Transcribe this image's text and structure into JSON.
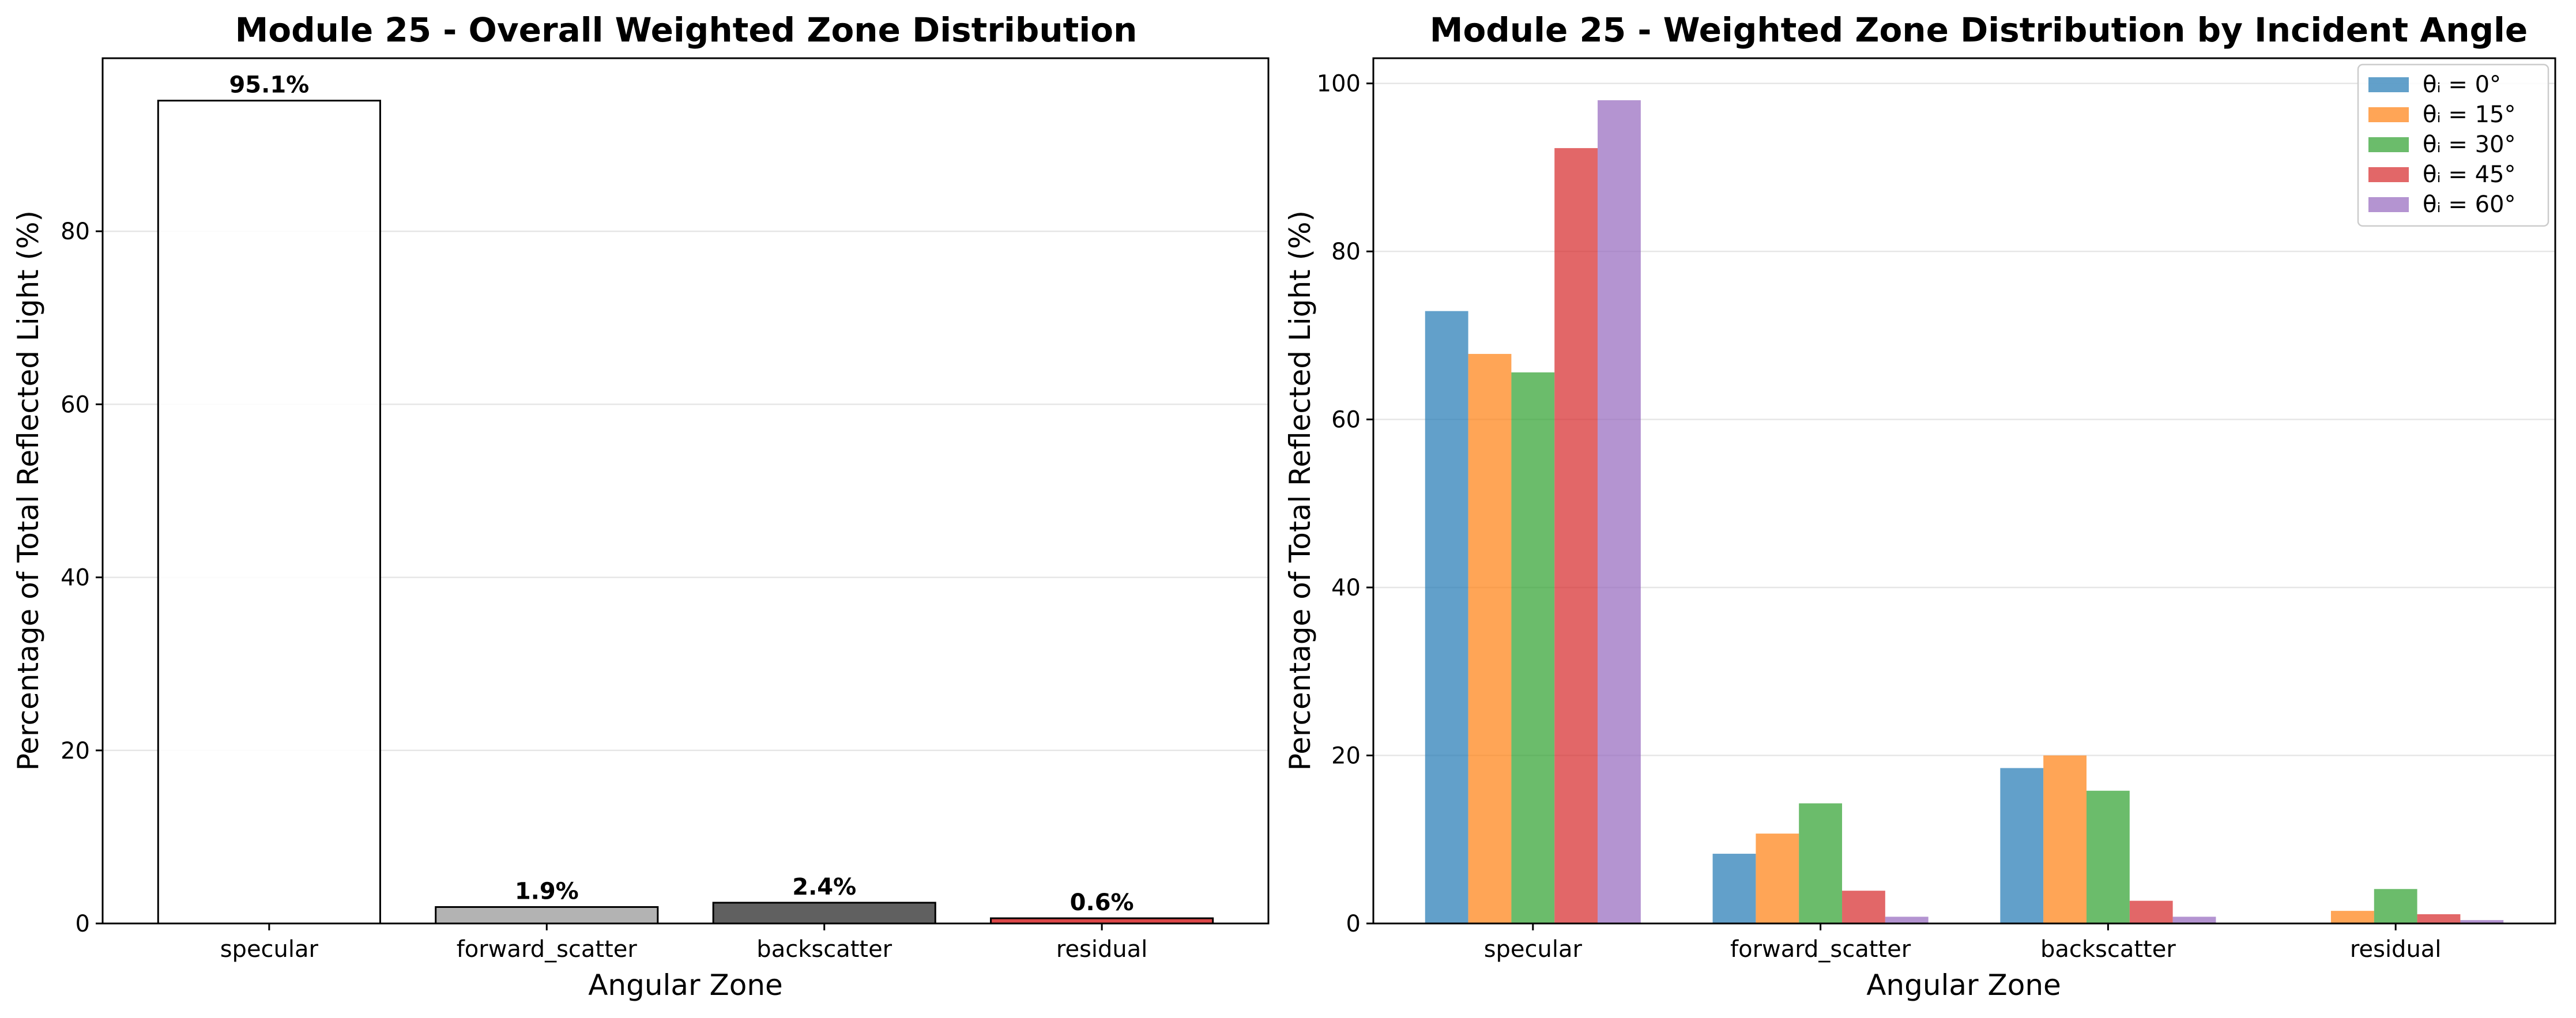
{
  "chart_data": [
    {
      "type": "bar",
      "title": "Module 25 - Overall Weighted Zone Distribution",
      "xlabel": "Angular Zone",
      "ylabel": "Percentage of Total Reflected Light (%)",
      "categories": [
        "specular",
        "forward_scatter",
        "backscatter",
        "residual"
      ],
      "values": [
        95.1,
        1.9,
        2.4,
        0.6
      ],
      "data_labels": [
        "95.1%",
        "1.9%",
        "2.4%",
        "0.6%"
      ],
      "bar_colors": [
        "#ffffff",
        "#a6a6a6",
        "#444444",
        "#d62728"
      ],
      "ylim": [
        0,
        100
      ],
      "yticks": [
        0,
        20,
        40,
        60,
        80
      ],
      "ytick_labels": [
        "0",
        "20",
        "40",
        "60",
        "80"
      ],
      "grid": "y",
      "legend": "none"
    },
    {
      "type": "bar",
      "title": "Module 25 - Weighted Zone Distribution by Incident Angle",
      "xlabel": "Angular Zone",
      "ylabel": "Percentage of Total Reflected Light (%)",
      "categories": [
        "specular",
        "forward_scatter",
        "backscatter",
        "residual"
      ],
      "series": [
        {
          "name": "θᵢ = 0°",
          "color": "#1f77b4",
          "values": [
            72.9,
            8.3,
            18.5,
            0.0
          ]
        },
        {
          "name": "θᵢ = 15°",
          "color": "#ff7f0e",
          "values": [
            67.8,
            10.7,
            20.0,
            1.5
          ]
        },
        {
          "name": "θᵢ = 30°",
          "color": "#2ca02c",
          "values": [
            65.6,
            14.3,
            15.8,
            4.1
          ]
        },
        {
          "name": "θᵢ = 45°",
          "color": "#d62728",
          "values": [
            92.3,
            3.9,
            2.7,
            1.1
          ]
        },
        {
          "name": "θᵢ = 60°",
          "color": "#9467bd",
          "values": [
            98.0,
            0.8,
            0.8,
            0.4
          ]
        }
      ],
      "ylim": [
        0,
        103
      ],
      "yticks": [
        0,
        20,
        40,
        60,
        80,
        100
      ],
      "ytick_labels": [
        "0",
        "20",
        "40",
        "60",
        "80",
        "100"
      ],
      "grid": "y",
      "legend": "top-right"
    }
  ]
}
